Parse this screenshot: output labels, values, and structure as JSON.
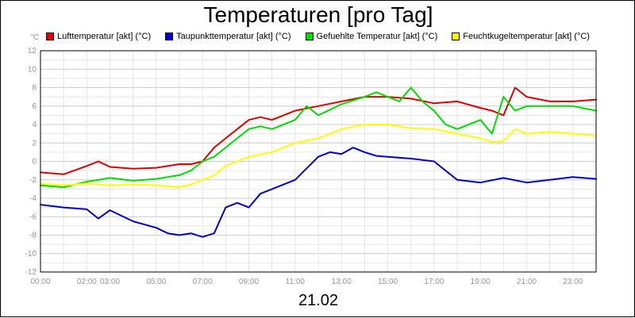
{
  "chart_data": {
    "type": "line",
    "title": "Temperaturen [pro Tag]",
    "ylabel": "°C",
    "xlabel": "21.02",
    "ylim": [
      -12,
      12
    ],
    "xlim": [
      0,
      24
    ],
    "grid": true,
    "legend_placement": "top",
    "y_ticks": [
      12,
      10,
      8,
      6,
      4,
      2,
      0,
      -2,
      -4,
      -6,
      -8,
      -10,
      -12
    ],
    "x_ticks": [
      {
        "hour": 0,
        "label": "00:00"
      },
      {
        "hour": 2,
        "label": "02:00"
      },
      {
        "hour": 3,
        "label": "03:00"
      },
      {
        "hour": 5,
        "label": "05:00"
      },
      {
        "hour": 7,
        "label": "07:00"
      },
      {
        "hour": 9,
        "label": "09:00"
      },
      {
        "hour": 11,
        "label": "11:00"
      },
      {
        "hour": 13,
        "label": "13:00"
      },
      {
        "hour": 15,
        "label": "15:00"
      },
      {
        "hour": 17,
        "label": "17:00"
      },
      {
        "hour": 19,
        "label": "19:00"
      },
      {
        "hour": 21,
        "label": "21:00"
      },
      {
        "hour": 23,
        "label": "23:00"
      }
    ],
    "series": [
      {
        "name": "Lufttemperatur [akt] (°C)",
        "color": "#e00000",
        "x": [
          0,
          1,
          2,
          2.5,
          3,
          4,
          5,
          6,
          6.5,
          7,
          7.5,
          8,
          8.5,
          9,
          9.5,
          10,
          11,
          12,
          13,
          14,
          15,
          16,
          17,
          18,
          19,
          19.5,
          20,
          20.5,
          21,
          22,
          23,
          24
        ],
        "y": [
          -1.2,
          -1.4,
          -0.5,
          0.0,
          -0.6,
          -0.8,
          -0.7,
          -0.3,
          -0.3,
          0.0,
          1.5,
          2.5,
          3.5,
          4.5,
          4.8,
          4.5,
          5.5,
          6.0,
          6.5,
          7.0,
          7.0,
          6.8,
          6.3,
          6.5,
          5.8,
          5.5,
          5.0,
          8.0,
          7.0,
          6.5,
          6.5,
          6.7
        ]
      },
      {
        "name": "Taupunkttemperatur [akt] (°C)",
        "color": "#0000cc",
        "x": [
          0,
          1,
          2,
          2.5,
          3,
          4,
          5,
          5.5,
          6,
          6.5,
          7,
          7.5,
          8,
          8.5,
          9,
          9.5,
          10,
          11,
          12,
          12.5,
          13,
          13.5,
          14,
          14.5,
          15,
          16,
          17,
          18,
          19,
          20,
          21,
          22,
          23,
          24
        ],
        "y": [
          -4.7,
          -5.0,
          -5.2,
          -6.2,
          -5.3,
          -6.5,
          -7.2,
          -7.8,
          -8.0,
          -7.8,
          -8.2,
          -7.8,
          -5.0,
          -4.5,
          -5.0,
          -3.5,
          -3.0,
          -2.0,
          0.5,
          1.0,
          0.8,
          1.5,
          1.0,
          0.6,
          0.5,
          0.3,
          0.0,
          -2.0,
          -2.3,
          -1.8,
          -2.3,
          -2.0,
          -1.7,
          -1.9
        ]
      },
      {
        "name": "Gefuehlte Temperatur [akt] (°C)",
        "color": "#00dd00",
        "x": [
          0,
          1,
          2,
          3,
          4,
          5,
          6,
          6.5,
          7,
          7.5,
          8,
          8.5,
          9,
          9.5,
          10,
          11,
          11.5,
          12,
          13,
          14,
          14.5,
          15,
          15.5,
          16,
          16.5,
          17,
          17.5,
          18,
          19,
          19.5,
          20,
          20.5,
          21,
          22,
          23,
          24
        ],
        "y": [
          -2.6,
          -2.8,
          -2.2,
          -1.8,
          -2.1,
          -1.9,
          -1.5,
          -1.0,
          0.0,
          0.5,
          1.5,
          2.5,
          3.5,
          3.8,
          3.5,
          4.5,
          6.0,
          5.0,
          6.2,
          7.0,
          7.5,
          7.0,
          6.5,
          8.0,
          6.5,
          5.5,
          4.0,
          3.5,
          4.5,
          3.0,
          7.0,
          5.5,
          6.0,
          6.0,
          6.0,
          5.5
        ]
      },
      {
        "name": "Feuchtkugeltemperatur [akt] (°C)",
        "color": "#ffff00",
        "x": [
          0,
          1,
          2,
          3,
          4,
          5,
          6,
          6.5,
          7,
          7.5,
          8,
          8.5,
          9,
          10,
          11,
          12,
          13,
          14,
          15,
          16,
          17,
          18,
          19,
          19.5,
          20,
          20.5,
          21,
          22,
          23,
          24
        ],
        "y": [
          -2.4,
          -2.6,
          -2.4,
          -2.6,
          -2.5,
          -2.6,
          -2.8,
          -2.5,
          -2.0,
          -1.5,
          -0.5,
          0.0,
          0.5,
          1.0,
          2.0,
          2.5,
          3.5,
          4.0,
          4.0,
          3.6,
          3.5,
          3.0,
          2.5,
          2.1,
          2.2,
          3.5,
          3.0,
          3.2,
          3.0,
          2.8
        ]
      }
    ]
  }
}
